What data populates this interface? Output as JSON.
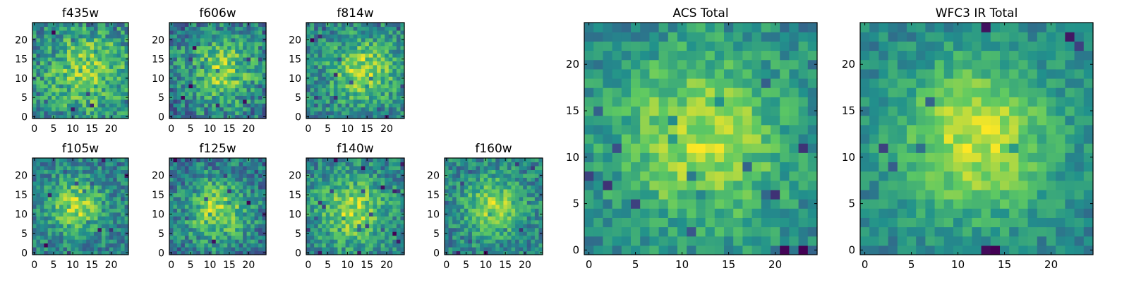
{
  "figure": {
    "background": "#ffffff"
  },
  "colormap": {
    "name": "viridis",
    "stops": [
      "#440154",
      "#3b528b",
      "#21918c",
      "#5ec962",
      "#fde725"
    ]
  },
  "chart_data": [
    {
      "type": "heatmap",
      "title": "f435w",
      "grid_size": 25,
      "ylim": [
        0,
        24
      ],
      "xlim": [
        0,
        24
      ],
      "x_ticks": [
        "0",
        "5",
        "10",
        "15",
        "20"
      ],
      "y_ticks": [
        "0",
        "5",
        "10",
        "15",
        "20"
      ],
      "peak": {
        "x": 14,
        "y": 12
      },
      "peak_width": 8,
      "noise_level": 0.45,
      "seed": 11
    },
    {
      "type": "heatmap",
      "title": "f606w",
      "grid_size": 25,
      "ylim": [
        0,
        24
      ],
      "xlim": [
        0,
        24
      ],
      "x_ticks": [
        "0",
        "5",
        "10",
        "15",
        "20"
      ],
      "y_ticks": [
        "0",
        "5",
        "10",
        "15",
        "20"
      ],
      "peak": {
        "x": 13,
        "y": 12
      },
      "peak_width": 7,
      "noise_level": 0.4,
      "seed": 23
    },
    {
      "type": "heatmap",
      "title": "f814w",
      "grid_size": 25,
      "ylim": [
        0,
        24
      ],
      "xlim": [
        0,
        24
      ],
      "x_ticks": [
        "0",
        "5",
        "10",
        "15",
        "20"
      ],
      "y_ticks": [
        "0",
        "5",
        "10",
        "15",
        "20"
      ],
      "peak": {
        "x": 14,
        "y": 12
      },
      "peak_width": 6,
      "noise_level": 0.35,
      "seed": 37
    },
    {
      "type": "heatmap",
      "title": "f105w",
      "grid_size": 25,
      "ylim": [
        0,
        24
      ],
      "xlim": [
        0,
        24
      ],
      "x_ticks": [
        "0",
        "5",
        "10",
        "15",
        "20"
      ],
      "y_ticks": [
        "0",
        "5",
        "10",
        "15",
        "20"
      ],
      "peak": {
        "x": 11,
        "y": 12
      },
      "peak_width": 5,
      "noise_level": 0.32,
      "seed": 41
    },
    {
      "type": "heatmap",
      "title": "f125w",
      "grid_size": 25,
      "ylim": [
        0,
        24
      ],
      "xlim": [
        0,
        24
      ],
      "x_ticks": [
        "0",
        "5",
        "10",
        "15",
        "20"
      ],
      "y_ticks": [
        "0",
        "5",
        "10",
        "15",
        "20"
      ],
      "peak": {
        "x": 12,
        "y": 11
      },
      "peak_width": 6,
      "noise_level": 0.33,
      "seed": 53
    },
    {
      "type": "heatmap",
      "title": "f140w",
      "grid_size": 25,
      "ylim": [
        0,
        24
      ],
      "xlim": [
        0,
        24
      ],
      "x_ticks": [
        "0",
        "5",
        "10",
        "15",
        "20"
      ],
      "y_ticks": [
        "0",
        "5",
        "10",
        "15",
        "20"
      ],
      "peak": {
        "x": 11,
        "y": 11
      },
      "peak_width": 6,
      "noise_level": 0.34,
      "seed": 67
    },
    {
      "type": "heatmap",
      "title": "f160w",
      "grid_size": 25,
      "ylim": [
        0,
        24
      ],
      "xlim": [
        0,
        24
      ],
      "x_ticks": [
        "0",
        "5",
        "10",
        "15",
        "20"
      ],
      "y_ticks": [
        "0",
        "5",
        "10",
        "15",
        "20"
      ],
      "peak": {
        "x": 12,
        "y": 12
      },
      "peak_width": 5,
      "noise_level": 0.32,
      "seed": 79
    },
    {
      "type": "heatmap",
      "title": "ACS Total",
      "grid_size": 25,
      "ylim": [
        0,
        24
      ],
      "xlim": [
        0,
        24
      ],
      "x_ticks": [
        "0",
        "5",
        "10",
        "15",
        "20"
      ],
      "y_ticks": [
        "0",
        "5",
        "10",
        "15",
        "20"
      ],
      "peak": {
        "x": 12,
        "y": 12
      },
      "peak_width": 7,
      "noise_level": 0.25,
      "seed": 83
    },
    {
      "type": "heatmap",
      "title": "WFC3 IR Total",
      "grid_size": 25,
      "ylim": [
        0,
        24
      ],
      "xlim": [
        0,
        24
      ],
      "x_ticks": [
        "0",
        "5",
        "10",
        "15",
        "20"
      ],
      "y_ticks": [
        "0",
        "5",
        "10",
        "15",
        "20"
      ],
      "peak": {
        "x": 12,
        "y": 12
      },
      "peak_width": 6,
      "noise_level": 0.18,
      "seed": 97
    }
  ]
}
